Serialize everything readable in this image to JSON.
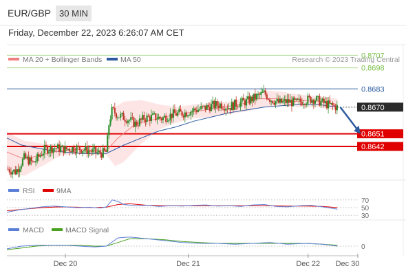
{
  "header": {
    "symbol": "EUR/GBP",
    "timeframe": "30 MIN",
    "timestamp": "Friday, December 22, 2023 6:26:07 AM CET"
  },
  "colors": {
    "accent": "#2c5aa0",
    "resistance": "#7cc04a",
    "support": "#e00000",
    "ma20": "#f08080",
    "bollinger_fill": "#fddcdc",
    "ma50": "#2c5aa0",
    "rsi": "#5b7fd6",
    "rsi_ma": "#e00000",
    "macd": "#5b7fd6",
    "macd_signal": "#4aa020",
    "candle_up": "#2f8f2f",
    "candle_down": "#c0392b",
    "price_tag": "#2b2b2b"
  },
  "chart_data": {
    "type": "candlestick",
    "legend": [
      "MA 20 + Bollinger Bands",
      "MA 50"
    ],
    "legend_colors": [
      "#f08080",
      "#2c5aa0"
    ],
    "credit": "Research © 2023 Trading Central",
    "last_price": 0.867,
    "last_price_label": "0.8670",
    "resistances": [
      0.8707,
      0.8698,
      0.8683
    ],
    "resistance_labels": [
      "0.8707",
      "0.8698",
      "0.8683"
    ],
    "supports": [
      0.8651,
      0.8642
    ],
    "support_labels": [
      "0.8651",
      "0.8642"
    ],
    "ylim": [
      0.8618,
      0.8714
    ],
    "x_range": [
      0,
      120
    ],
    "x_ticks": [
      {
        "pos": 20,
        "label": "Dec 20"
      },
      {
        "pos": 62,
        "label": "Dec 21"
      },
      {
        "pos": 103,
        "label": "Dec 22"
      },
      {
        "pos": 120,
        "label": "Dec 30"
      }
    ],
    "price_path": [
      [
        0,
        0.8626
      ],
      [
        3,
        0.8624
      ],
      [
        6,
        0.8634
      ],
      [
        9,
        0.863
      ],
      [
        13,
        0.864
      ],
      [
        16,
        0.8641
      ],
      [
        20,
        0.864
      ],
      [
        24,
        0.8641
      ],
      [
        28,
        0.8639
      ],
      [
        32,
        0.8637
      ],
      [
        34,
        0.8638
      ],
      [
        35,
        0.866
      ],
      [
        36,
        0.8668
      ],
      [
        38,
        0.8664
      ],
      [
        41,
        0.8662
      ],
      [
        44,
        0.8658
      ],
      [
        47,
        0.8662
      ],
      [
        50,
        0.8663
      ],
      [
        53,
        0.8662
      ],
      [
        57,
        0.8665
      ],
      [
        61,
        0.8666
      ],
      [
        64,
        0.8668
      ],
      [
        67,
        0.8669
      ],
      [
        70,
        0.8671
      ],
      [
        73,
        0.8672
      ],
      [
        76,
        0.867
      ],
      [
        79,
        0.8673
      ],
      [
        82,
        0.8674
      ],
      [
        85,
        0.8677
      ],
      [
        88,
        0.868
      ],
      [
        90,
        0.8676
      ],
      [
        93,
        0.8673
      ],
      [
        96,
        0.8674
      ],
      [
        99,
        0.8673
      ],
      [
        102,
        0.8675
      ],
      [
        105,
        0.8676
      ],
      [
        108,
        0.8673
      ],
      [
        111,
        0.8671
      ],
      [
        113,
        0.867
      ]
    ],
    "ma50_path": [
      [
        0,
        0.8648
      ],
      [
        5,
        0.8643
      ],
      [
        10,
        0.8641
      ],
      [
        15,
        0.8639
      ],
      [
        20,
        0.8638
      ],
      [
        25,
        0.8637
      ],
      [
        30,
        0.8637
      ],
      [
        34,
        0.8637
      ],
      [
        40,
        0.8643
      ],
      [
        46,
        0.8648
      ],
      [
        52,
        0.8653
      ],
      [
        58,
        0.8656
      ],
      [
        64,
        0.866
      ],
      [
        70,
        0.8663
      ],
      [
        76,
        0.8666
      ],
      [
        82,
        0.8668
      ],
      [
        88,
        0.867
      ],
      [
        94,
        0.8671
      ],
      [
        100,
        0.8672
      ],
      [
        106,
        0.8672
      ],
      [
        113,
        0.867
      ]
    ],
    "ma20_path": [
      [
        0,
        0.8638
      ],
      [
        6,
        0.8633
      ],
      [
        12,
        0.8636
      ],
      [
        18,
        0.8639
      ],
      [
        24,
        0.864
      ],
      [
        30,
        0.8639
      ],
      [
        34,
        0.8639
      ],
      [
        38,
        0.8648
      ],
      [
        44,
        0.8658
      ],
      [
        50,
        0.8661
      ],
      [
        56,
        0.8664
      ],
      [
        62,
        0.8666
      ],
      [
        68,
        0.8668
      ],
      [
        74,
        0.867
      ],
      [
        80,
        0.8672
      ],
      [
        86,
        0.8676
      ],
      [
        92,
        0.8676
      ],
      [
        98,
        0.8674
      ],
      [
        104,
        0.8675
      ],
      [
        110,
        0.8673
      ],
      [
        113,
        0.8672
      ]
    ],
    "bb_upper": [
      [
        0,
        0.8652
      ],
      [
        6,
        0.8646
      ],
      [
        12,
        0.8644
      ],
      [
        18,
        0.8643
      ],
      [
        24,
        0.8642
      ],
      [
        30,
        0.8642
      ],
      [
        34,
        0.8643
      ],
      [
        37,
        0.867
      ],
      [
        40,
        0.8674
      ],
      [
        46,
        0.8675
      ],
      [
        52,
        0.8672
      ],
      [
        58,
        0.867
      ],
      [
        64,
        0.8672
      ],
      [
        70,
        0.8673
      ],
      [
        76,
        0.8674
      ],
      [
        82,
        0.8677
      ],
      [
        88,
        0.8682
      ],
      [
        94,
        0.8681
      ],
      [
        100,
        0.8679
      ],
      [
        106,
        0.8678
      ],
      [
        113,
        0.8676
      ]
    ],
    "bb_lower": [
      [
        0,
        0.8624
      ],
      [
        6,
        0.8621
      ],
      [
        12,
        0.8628
      ],
      [
        18,
        0.8635
      ],
      [
        24,
        0.8637
      ],
      [
        30,
        0.8636
      ],
      [
        34,
        0.8636
      ],
      [
        37,
        0.8628
      ],
      [
        40,
        0.8631
      ],
      [
        46,
        0.8644
      ],
      [
        52,
        0.8654
      ],
      [
        58,
        0.8659
      ],
      [
        64,
        0.8662
      ],
      [
        70,
        0.8663
      ],
      [
        76,
        0.8665
      ],
      [
        82,
        0.8667
      ],
      [
        88,
        0.867
      ],
      [
        94,
        0.8671
      ],
      [
        100,
        0.867
      ],
      [
        106,
        0.867
      ],
      [
        113,
        0.8668
      ]
    ],
    "forecast": {
      "from": [
        114,
        0.867
      ],
      "to": [
        121,
        0.8651
      ]
    },
    "rsi": {
      "legend": [
        "RSI",
        "9MA"
      ],
      "levels": [
        70,
        50,
        30
      ],
      "level_labels": [
        "70",
        "50",
        "30"
      ],
      "ylim": [
        25,
        75
      ],
      "path": [
        [
          0,
          38
        ],
        [
          4,
          44
        ],
        [
          8,
          48
        ],
        [
          12,
          52
        ],
        [
          16,
          54
        ],
        [
          20,
          52
        ],
        [
          24,
          50
        ],
        [
          28,
          51
        ],
        [
          32,
          49
        ],
        [
          34,
          52
        ],
        [
          36,
          70
        ],
        [
          38,
          66
        ],
        [
          40,
          58
        ],
        [
          44,
          55
        ],
        [
          48,
          56
        ],
        [
          52,
          53
        ],
        [
          56,
          55
        ],
        [
          60,
          54
        ],
        [
          64,
          56
        ],
        [
          68,
          57
        ],
        [
          72,
          54
        ],
        [
          76,
          55
        ],
        [
          80,
          53
        ],
        [
          84,
          57
        ],
        [
          88,
          58
        ],
        [
          92,
          53
        ],
        [
          96,
          52
        ],
        [
          100,
          55
        ],
        [
          104,
          56
        ],
        [
          108,
          52
        ],
        [
          113,
          46
        ]
      ],
      "ma_path": [
        [
          0,
          42
        ],
        [
          6,
          46
        ],
        [
          12,
          50
        ],
        [
          18,
          52
        ],
        [
          24,
          51
        ],
        [
          30,
          50
        ],
        [
          34,
          51
        ],
        [
          38,
          58
        ],
        [
          42,
          60
        ],
        [
          48,
          56
        ],
        [
          54,
          55
        ],
        [
          60,
          55
        ],
        [
          66,
          55
        ],
        [
          72,
          55
        ],
        [
          78,
          55
        ],
        [
          84,
          55
        ],
        [
          90,
          55
        ],
        [
          96,
          54
        ],
        [
          102,
          54
        ],
        [
          108,
          53
        ],
        [
          113,
          50
        ]
      ]
    },
    "macd": {
      "legend": [
        "MACD",
        "MACD Signal"
      ],
      "zero_label": "0",
      "ylim": [
        -0.0006,
        0.0012
      ],
      "macd_path": [
        [
          0,
          -0.0003
        ],
        [
          5,
          0.0
        ],
        [
          10,
          0.0001
        ],
        [
          15,
          0.0001
        ],
        [
          20,
          0.0001
        ],
        [
          25,
          0.0
        ],
        [
          30,
          -0.0001
        ],
        [
          34,
          0.0
        ],
        [
          38,
          0.0009
        ],
        [
          42,
          0.001
        ],
        [
          48,
          0.0008
        ],
        [
          54,
          0.0006
        ],
        [
          60,
          0.0004
        ],
        [
          66,
          0.0003
        ],
        [
          72,
          0.0003
        ],
        [
          78,
          0.0002
        ],
        [
          84,
          0.0003
        ],
        [
          90,
          0.0004
        ],
        [
          96,
          0.0002
        ],
        [
          102,
          0.0003
        ],
        [
          108,
          0.0002
        ],
        [
          113,
          0.0
        ]
      ],
      "signal_path": [
        [
          0,
          -0.0004
        ],
        [
          5,
          -0.0002
        ],
        [
          10,
          0.0
        ],
        [
          15,
          0.0001
        ],
        [
          20,
          0.0001
        ],
        [
          25,
          0.0001
        ],
        [
          30,
          0.0
        ],
        [
          34,
          0.0
        ],
        [
          38,
          0.0004
        ],
        [
          42,
          0.0008
        ],
        [
          48,
          0.0008
        ],
        [
          54,
          0.0007
        ],
        [
          60,
          0.0005
        ],
        [
          66,
          0.0004
        ],
        [
          72,
          0.0003
        ],
        [
          78,
          0.0003
        ],
        [
          84,
          0.0003
        ],
        [
          90,
          0.0003
        ],
        [
          96,
          0.0003
        ],
        [
          102,
          0.0003
        ],
        [
          108,
          0.0002
        ],
        [
          113,
          0.0001
        ]
      ]
    }
  }
}
